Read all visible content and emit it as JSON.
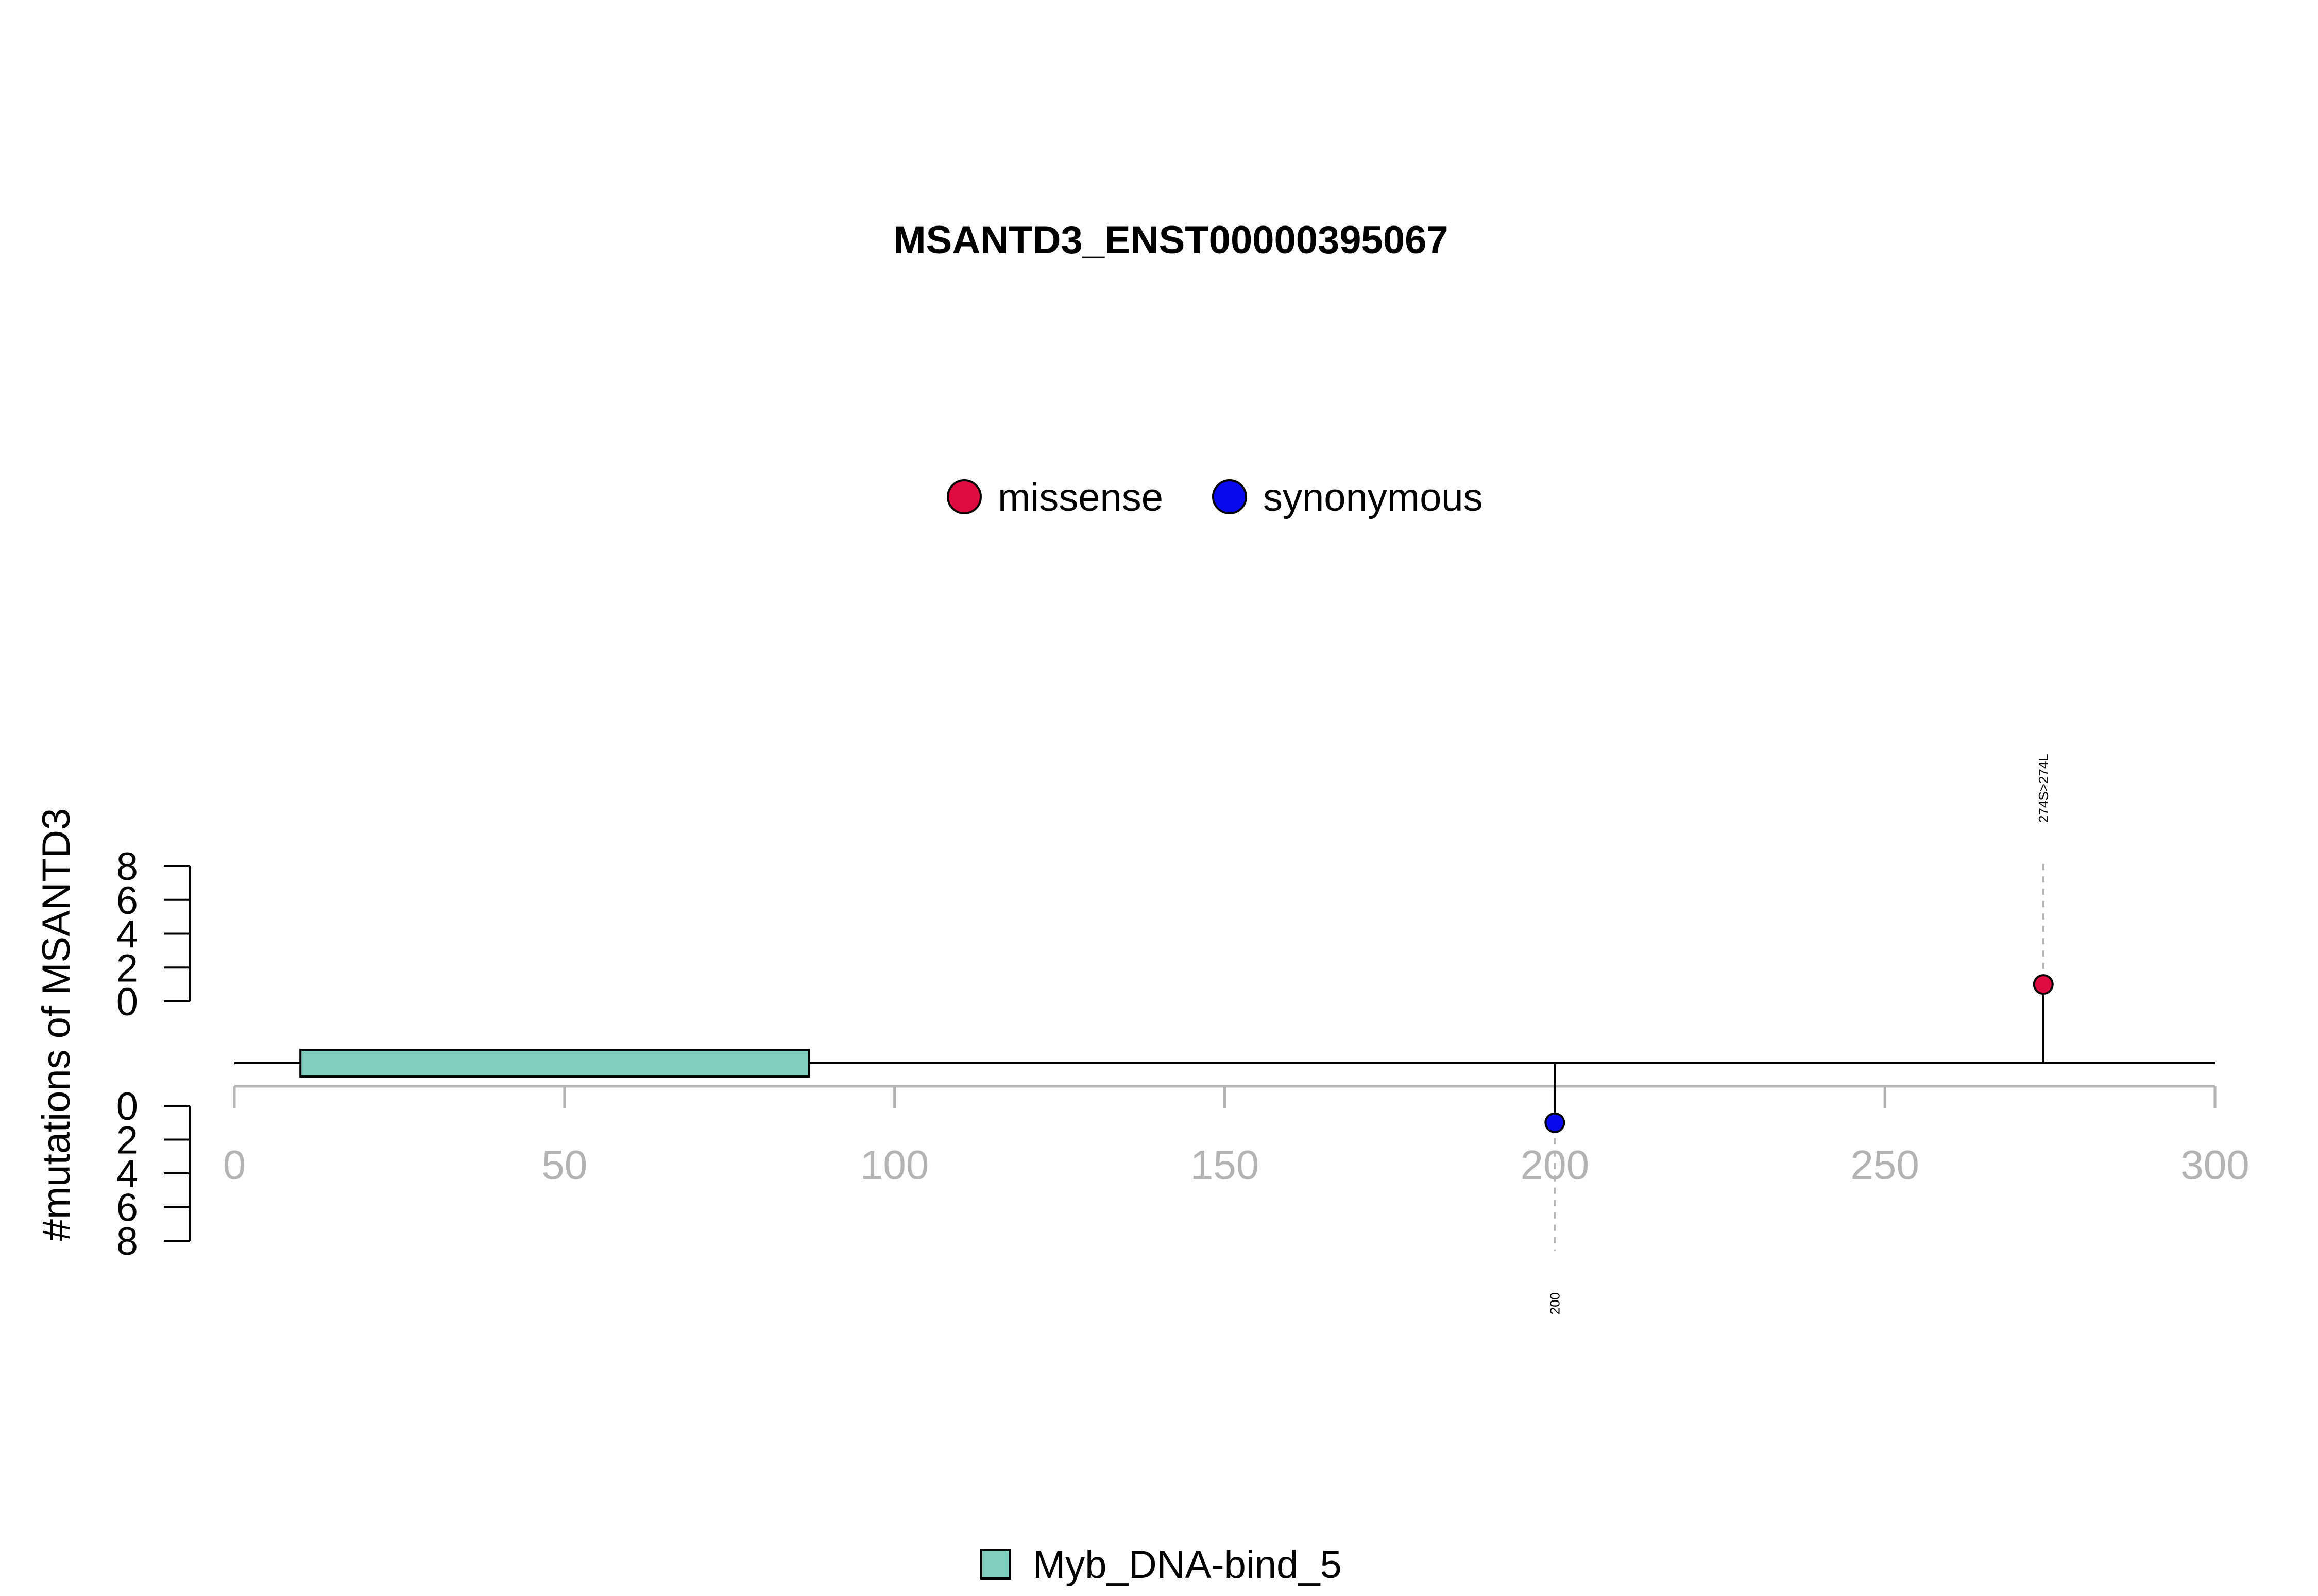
{
  "chart_data": {
    "type": "lollipop",
    "title": "MSANTD3_ENST00000395067",
    "ylabel": "#mutations of MSANTD3",
    "protein_length": 300,
    "xlim": [
      0,
      300
    ],
    "x_ticks": [
      0,
      50,
      100,
      150,
      200,
      250,
      300
    ],
    "y_ticks": [
      0,
      2,
      4,
      6,
      8
    ],
    "ylim": [
      0,
      8
    ],
    "legend_top": {
      "placement": "top-center",
      "entries": [
        {
          "name": "missense",
          "color": "#DF0A3F"
        },
        {
          "name": "synonymous",
          "color": "#0A0AF0"
        }
      ]
    },
    "domains": [
      {
        "name": "Myb_DNA-bind_5",
        "start": 10,
        "end": 87,
        "color": "#7FCDBB"
      }
    ],
    "legend_bottom": {
      "placement": "bottom-center",
      "entries": [
        {
          "name": "Myb_DNA-bind_5",
          "color": "#7FCDBB"
        }
      ]
    },
    "mutations": [
      {
        "position": 274,
        "count": 1,
        "type": "missense",
        "label": "274S>274L",
        "side": "top",
        "color": "#DF0A3F"
      },
      {
        "position": 200,
        "count": 1,
        "type": "synonymous",
        "label": "200",
        "side": "bottom",
        "color": "#0A0AF0"
      }
    ]
  }
}
